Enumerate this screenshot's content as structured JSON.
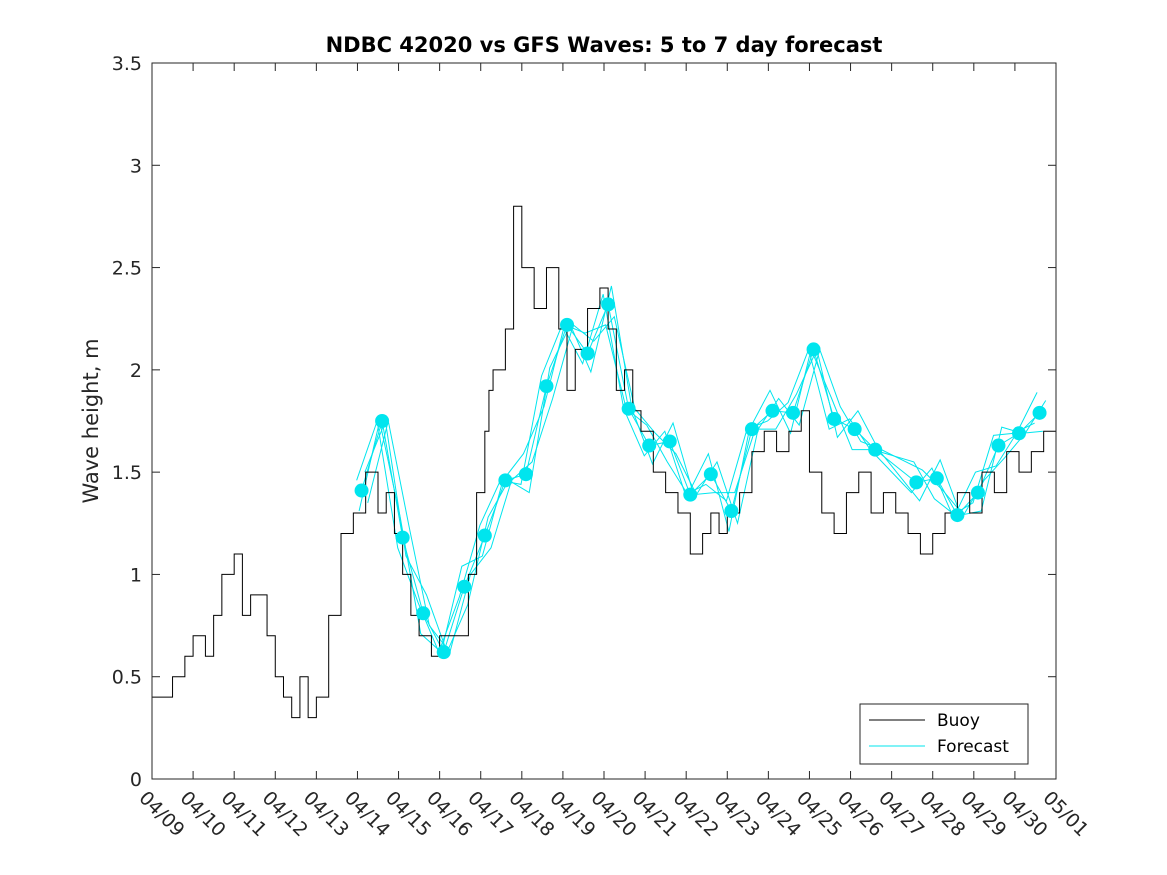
{
  "chart_data": {
    "type": "line",
    "title": "NDBC 42020 vs GFS Waves: 5 to 7 day forecast",
    "xlabel": "",
    "ylabel": "Wave height, m",
    "xlim": [
      "04/09",
      "05/01"
    ],
    "ylim": [
      0,
      3.5
    ],
    "yticks": [
      0,
      0.5,
      1,
      1.5,
      2,
      2.5,
      3,
      3.5
    ],
    "ytick_labels": [
      "0",
      "0.5",
      "1",
      "1.5",
      "2",
      "2.5",
      "3",
      "3.5"
    ],
    "xtick_labels": [
      "04/09",
      "04/10",
      "04/11",
      "04/12",
      "04/13",
      "04/14",
      "04/15",
      "04/16",
      "04/17",
      "04/18",
      "04/19",
      "04/20",
      "04/21",
      "04/22",
      "04/23",
      "04/24",
      "04/25",
      "04/26",
      "04/27",
      "04/28",
      "04/29",
      "04/30",
      "05/01"
    ],
    "legend": {
      "position": "bottom-right",
      "entries": [
        "Buoy",
        "Forecast"
      ]
    },
    "colors": {
      "buoy": "#000000",
      "forecast": "#00e5ee"
    },
    "buoy": {
      "name": "Buoy",
      "x_day": [
        0,
        0.5,
        0.8,
        1.0,
        1.3,
        1.5,
        1.7,
        1.9,
        2.0,
        2.2,
        2.4,
        2.6,
        2.8,
        3.0,
        3.2,
        3.4,
        3.6,
        3.8,
        4.0,
        4.3,
        4.6,
        4.9,
        5.2,
        5.4,
        5.5,
        5.7,
        5.9,
        6.1,
        6.3,
        6.5,
        6.8,
        7.0,
        7.1,
        7.3,
        7.5,
        7.7,
        7.9,
        8.1,
        8.2,
        8.3,
        8.6,
        8.8,
        9.0,
        9.3,
        9.6,
        9.9,
        10.1,
        10.3,
        10.6,
        10.9,
        11.1,
        11.3,
        11.5,
        11.7,
        11.9,
        12.2,
        12.5,
        12.8,
        13.1,
        13.4,
        13.6,
        13.8,
        14.0,
        14.3,
        14.6,
        14.9,
        15.2,
        15.5,
        15.8,
        16.0,
        16.3,
        16.6,
        16.9,
        17.2,
        17.5,
        17.8,
        18.1,
        18.4,
        18.7,
        19.0,
        19.3,
        19.6,
        19.9,
        20.2,
        20.5,
        20.8,
        21.1,
        21.4,
        21.7,
        22.0
      ],
      "y": [
        0.4,
        0.5,
        0.6,
        0.7,
        0.6,
        0.8,
        1.0,
        1.0,
        1.1,
        0.8,
        0.9,
        0.9,
        0.7,
        0.5,
        0.4,
        0.3,
        0.5,
        0.3,
        0.4,
        0.8,
        1.2,
        1.3,
        1.5,
        1.5,
        1.3,
        1.4,
        1.2,
        1.0,
        0.8,
        0.7,
        0.6,
        0.7,
        0.7,
        0.7,
        0.7,
        1.0,
        1.4,
        1.7,
        1.9,
        2.0,
        2.2,
        2.8,
        2.5,
        2.3,
        2.5,
        2.2,
        1.9,
        2.1,
        2.3,
        2.4,
        2.2,
        1.9,
        2.0,
        1.8,
        1.7,
        1.5,
        1.4,
        1.3,
        1.1,
        1.2,
        1.3,
        1.2,
        1.3,
        1.4,
        1.6,
        1.7,
        1.6,
        1.7,
        1.8,
        1.5,
        1.3,
        1.2,
        1.4,
        1.5,
        1.3,
        1.4,
        1.3,
        1.2,
        1.1,
        1.2,
        1.3,
        1.4,
        1.3,
        1.5,
        1.4,
        1.6,
        1.5,
        1.6,
        1.7,
        1.8
      ]
    },
    "forecast_markers": {
      "name": "Forecast",
      "x_day": [
        5.1,
        5.6,
        6.1,
        6.6,
        7.1,
        7.6,
        8.1,
        8.6,
        9.1,
        9.6,
        10.1,
        10.6,
        11.1,
        11.6,
        12.1,
        12.6,
        13.1,
        13.6,
        14.1,
        14.6,
        15.1,
        15.6,
        16.1,
        16.6,
        17.1,
        17.6,
        18.6,
        19.1,
        19.6,
        20.1,
        20.6,
        21.1,
        21.6
      ],
      "y": [
        1.41,
        1.75,
        1.18,
        0.81,
        0.62,
        0.94,
        1.19,
        1.46,
        1.49,
        1.92,
        2.22,
        2.08,
        2.32,
        1.81,
        1.63,
        1.65,
        1.39,
        1.49,
        1.31,
        1.71,
        1.8,
        1.79,
        2.1,
        1.76,
        1.71,
        1.61,
        1.45,
        1.47,
        1.29,
        1.4,
        1.63,
        1.69,
        1.79
      ]
    }
  }
}
